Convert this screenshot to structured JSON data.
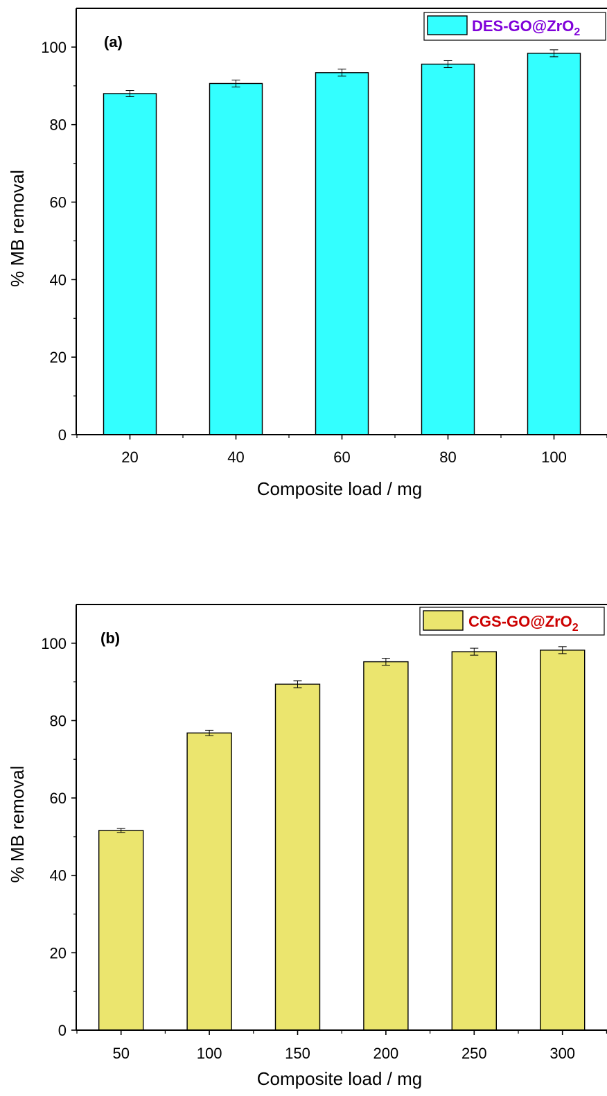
{
  "chart_data": [
    {
      "type": "bar",
      "panel_label": "(a)",
      "categories": [
        "20",
        "40",
        "60",
        "80",
        "100"
      ],
      "series": [
        {
          "name": "DES-GO@ZrO2",
          "values": [
            88.0,
            90.6,
            93.4,
            95.6,
            98.4
          ],
          "errors": [
            0.8,
            0.9,
            0.9,
            0.9,
            0.9
          ],
          "color": "#33FFFF"
        }
      ],
      "legend": {
        "main": "DES-GO@ZrO",
        "sub": "2",
        "text_color": "#7F00D9"
      },
      "xlabel": "Composite load / mg",
      "ylabel": "% MB removal",
      "ylim": [
        0,
        110
      ],
      "yticks": [
        0,
        20,
        40,
        60,
        80,
        100
      ],
      "grid": false,
      "legend_position": "top-right"
    },
    {
      "type": "bar",
      "panel_label": "(b)",
      "categories": [
        "50",
        "100",
        "150",
        "200",
        "250",
        "300"
      ],
      "series": [
        {
          "name": "CGS-GO@ZrO2",
          "values": [
            51.6,
            76.8,
            89.4,
            95.2,
            97.8,
            98.2
          ],
          "errors": [
            0.5,
            0.7,
            0.9,
            0.9,
            0.9,
            0.9
          ],
          "color": "#EBE56E"
        }
      ],
      "legend": {
        "main": "CGS-GO@ZrO",
        "sub": "2",
        "text_color": "#CC0000"
      },
      "xlabel": "Composite load / mg",
      "ylabel": "% MB removal",
      "ylim": [
        0,
        110
      ],
      "yticks": [
        0,
        20,
        40,
        60,
        80,
        100
      ],
      "grid": false,
      "legend_position": "top-right"
    }
  ]
}
